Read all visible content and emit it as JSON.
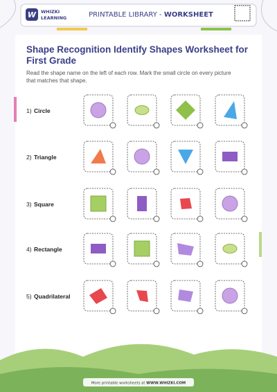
{
  "header": {
    "brand_top": "WHIZKI",
    "brand_bottom": "LEARNING",
    "library": "PRINTABLE LIBRARY - ",
    "kind": "WORKSHEET"
  },
  "title": "Shape Recognition Identify Shapes Worksheet for First Grade",
  "instructions": "Read the shape name on the left of each row. Mark the small circle on every picture that matches that shape.",
  "rows": [
    {
      "number": "1)",
      "shape": "Circle"
    },
    {
      "number": "2)",
      "shape": "Triangle"
    },
    {
      "number": "3)",
      "shape": "Square"
    },
    {
      "number": "4)",
      "shape": "Rectangle"
    },
    {
      "number": "5)",
      "shape": "Quadrilateral"
    }
  ],
  "footer": {
    "text": "More printable worksheets at ",
    "link": "WWW.WHIZKI.COM"
  }
}
